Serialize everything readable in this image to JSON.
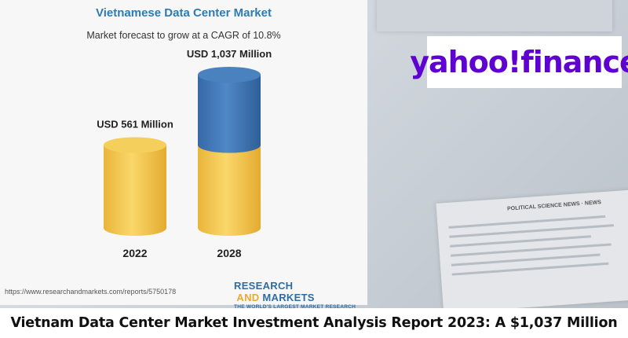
{
  "chart_data": {
    "type": "bar",
    "title": "Vietnamese Data Center Market",
    "subtitle": "Market forecast to grow at a CAGR of 10.8%",
    "categories": [
      "2022",
      "2028"
    ],
    "values": [
      561,
      1037
    ],
    "data_labels": [
      "USD 561 Million",
      "USD 1,037 Million"
    ],
    "unit": "USD Million",
    "colors": {
      "base": "#f2c64a",
      "growth": "#3f74b0"
    }
  },
  "source_text": "https://www.researchandmarkets.com/reports/5750178",
  "brand": {
    "name_part1": "RESEARCH",
    "name_part2": " AND ",
    "name_part3": "MARKETS",
    "tagline": "THE WORLD'S LARGEST MARKET RESEARCH STORE"
  },
  "yahoo": {
    "text": "yahoo!finance"
  },
  "caption": "Vietnam Data Center Market Investment Analysis Report 2023: A $1,037 Million",
  "background_text": "POLITICAL SCIENCE NEWS · NEWS"
}
